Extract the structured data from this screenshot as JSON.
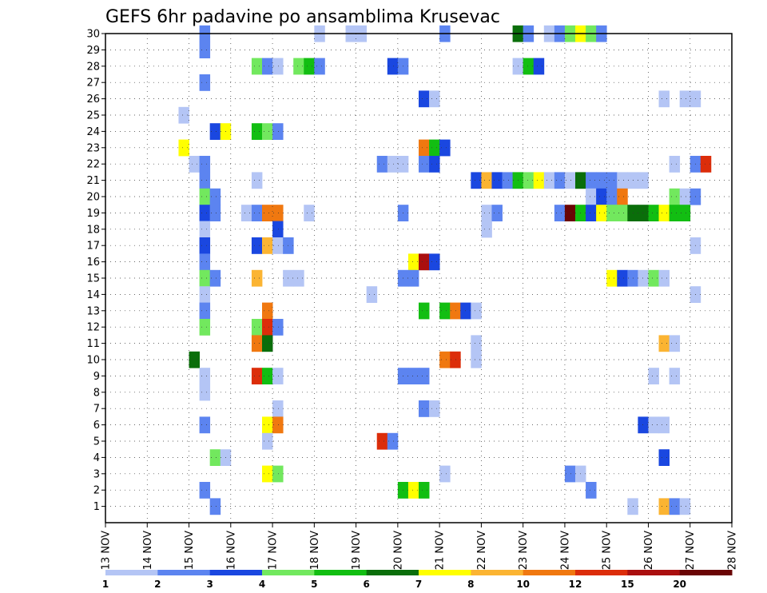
{
  "chart_data": {
    "type": "heatmap",
    "title": "GEFS 6hr padavine po ansamblima Krusevac",
    "xlabel": "",
    "ylabel": "",
    "x_ticks": [
      "13 NOV",
      "14 NOV",
      "15 NOV",
      "16 NOV",
      "17 NOV",
      "18 NOV",
      "19 NOV",
      "20 NOV",
      "21 NOV",
      "22 NOV",
      "23 NOV",
      "24 NOV",
      "25 NOV",
      "26 NOV",
      "27 NOV",
      "28 NOV"
    ],
    "y_ticks": [
      "1",
      "2",
      "3",
      "4",
      "5",
      "6",
      "7",
      "8",
      "9",
      "10",
      "11",
      "12",
      "13",
      "14",
      "15",
      "16",
      "17",
      "18",
      "19",
      "20",
      "21",
      "22",
      "23",
      "24",
      "25",
      "26",
      "27",
      "28",
      "29",
      "30"
    ],
    "xlim": [
      0,
      60
    ],
    "ylim": [
      0,
      30
    ],
    "grid": true,
    "colorbar": {
      "bounds": [
        1,
        2,
        3,
        4,
        5,
        6,
        7,
        8,
        10,
        12,
        15,
        20
      ],
      "labels": [
        "1",
        "2",
        "3",
        "4",
        "5",
        "6",
        "7",
        "8",
        "10",
        "12",
        "15",
        "20"
      ],
      "colors": [
        "#b4c5f5",
        "#5c84f0",
        "#1a47e0",
        "#72e85e",
        "#12be12",
        "#0a6e0a",
        "#ffff00",
        "#fbb432",
        "#f07810",
        "#dc2d0a",
        "#aa0f0f",
        "#6a0505"
      ]
    },
    "cells": [
      [
        9,
        30,
        2
      ],
      [
        20,
        30,
        1
      ],
      [
        23,
        30,
        1
      ],
      [
        24,
        30,
        1
      ],
      [
        32,
        30,
        2
      ],
      [
        39,
        30,
        6
      ],
      [
        40,
        30,
        2
      ],
      [
        42,
        30,
        1
      ],
      [
        43,
        30,
        2
      ],
      [
        44,
        30,
        4
      ],
      [
        45,
        30,
        7
      ],
      [
        46,
        30,
        4
      ],
      [
        47,
        30,
        2
      ],
      [
        9,
        29,
        2
      ],
      [
        14,
        28,
        4
      ],
      [
        15,
        28,
        2
      ],
      [
        16,
        28,
        1
      ],
      [
        18,
        28,
        4
      ],
      [
        19,
        28,
        5
      ],
      [
        20,
        28,
        2
      ],
      [
        27,
        28,
        3
      ],
      [
        28,
        28,
        2
      ],
      [
        39,
        28,
        1
      ],
      [
        40,
        28,
        5
      ],
      [
        41,
        28,
        3
      ],
      [
        9,
        27,
        2
      ],
      [
        30,
        26,
        3
      ],
      [
        31,
        26,
        1
      ],
      [
        53,
        26,
        1
      ],
      [
        55,
        26,
        1
      ],
      [
        56,
        26,
        1
      ],
      [
        7,
        25,
        1
      ],
      [
        10,
        24,
        3
      ],
      [
        11,
        24,
        7
      ],
      [
        14,
        24,
        5
      ],
      [
        15,
        24,
        4
      ],
      [
        16,
        24,
        2
      ],
      [
        7,
        23,
        7
      ],
      [
        30,
        23,
        9
      ],
      [
        31,
        23,
        5
      ],
      [
        32,
        23,
        3
      ],
      [
        8,
        22,
        1
      ],
      [
        9,
        22,
        2
      ],
      [
        26,
        22,
        2
      ],
      [
        27,
        22,
        1
      ],
      [
        28,
        22,
        1
      ],
      [
        30,
        22,
        2
      ],
      [
        31,
        22,
        3
      ],
      [
        54,
        22,
        1
      ],
      [
        56,
        22,
        2
      ],
      [
        57,
        22,
        10
      ],
      [
        9,
        21,
        2
      ],
      [
        14,
        21,
        1
      ],
      [
        35,
        21,
        3
      ],
      [
        36,
        21,
        8
      ],
      [
        37,
        21,
        3
      ],
      [
        38,
        21,
        2
      ],
      [
        39,
        21,
        5
      ],
      [
        40,
        21,
        4
      ],
      [
        41,
        21,
        7
      ],
      [
        42,
        21,
        1
      ],
      [
        43,
        21,
        2
      ],
      [
        44,
        21,
        1
      ],
      [
        45,
        21,
        6
      ],
      [
        46,
        21,
        2
      ],
      [
        47,
        21,
        2
      ],
      [
        48,
        21,
        2
      ],
      [
        49,
        21,
        1
      ],
      [
        50,
        21,
        1
      ],
      [
        51,
        21,
        1
      ],
      [
        9,
        20,
        4
      ],
      [
        10,
        20,
        2
      ],
      [
        46,
        20,
        1
      ],
      [
        47,
        20,
        3
      ],
      [
        48,
        20,
        2
      ],
      [
        49,
        20,
        9
      ],
      [
        54,
        20,
        4
      ],
      [
        55,
        20,
        1
      ],
      [
        56,
        20,
        2
      ],
      [
        9,
        19,
        3
      ],
      [
        10,
        19,
        2
      ],
      [
        13,
        19,
        1
      ],
      [
        14,
        19,
        2
      ],
      [
        15,
        19,
        9
      ],
      [
        16,
        19,
        9
      ],
      [
        19,
        19,
        1
      ],
      [
        28,
        19,
        2
      ],
      [
        36,
        19,
        1
      ],
      [
        37,
        19,
        2
      ],
      [
        43,
        19,
        2
      ],
      [
        44,
        19,
        12
      ],
      [
        45,
        19,
        5
      ],
      [
        46,
        19,
        3
      ],
      [
        47,
        19,
        7
      ],
      [
        48,
        19,
        4
      ],
      [
        49,
        19,
        4
      ],
      [
        50,
        19,
        6
      ],
      [
        51,
        19,
        6
      ],
      [
        52,
        19,
        5
      ],
      [
        53,
        19,
        7
      ],
      [
        54,
        19,
        5
      ],
      [
        55,
        19,
        5
      ],
      [
        9,
        18,
        1
      ],
      [
        16,
        18,
        3
      ],
      [
        36,
        18,
        1
      ],
      [
        9,
        17,
        3
      ],
      [
        14,
        17,
        3
      ],
      [
        15,
        17,
        8
      ],
      [
        16,
        17,
        1
      ],
      [
        17,
        17,
        2
      ],
      [
        56,
        17,
        1
      ],
      [
        9,
        16,
        2
      ],
      [
        29,
        16,
        7
      ],
      [
        30,
        16,
        11
      ],
      [
        31,
        16,
        3
      ],
      [
        9,
        15,
        4
      ],
      [
        10,
        15,
        2
      ],
      [
        14,
        15,
        8
      ],
      [
        17,
        15,
        1
      ],
      [
        18,
        15,
        1
      ],
      [
        28,
        15,
        2
      ],
      [
        29,
        15,
        2
      ],
      [
        48,
        15,
        7
      ],
      [
        49,
        15,
        3
      ],
      [
        50,
        15,
        2
      ],
      [
        51,
        15,
        1
      ],
      [
        52,
        15,
        4
      ],
      [
        53,
        15,
        1
      ],
      [
        9,
        14,
        1
      ],
      [
        25,
        14,
        1
      ],
      [
        56,
        14,
        1
      ],
      [
        9,
        13,
        2
      ],
      [
        15,
        13,
        9
      ],
      [
        30,
        13,
        5
      ],
      [
        32,
        13,
        5
      ],
      [
        33,
        13,
        9
      ],
      [
        34,
        13,
        3
      ],
      [
        35,
        13,
        1
      ],
      [
        9,
        12,
        4
      ],
      [
        14,
        12,
        4
      ],
      [
        15,
        12,
        10
      ],
      [
        16,
        12,
        2
      ],
      [
        14,
        11,
        9
      ],
      [
        15,
        11,
        6
      ],
      [
        35,
        11,
        1
      ],
      [
        53,
        11,
        8
      ],
      [
        54,
        11,
        1
      ],
      [
        8,
        10,
        6
      ],
      [
        32,
        10,
        9
      ],
      [
        33,
        10,
        10
      ],
      [
        35,
        10,
        1
      ],
      [
        9,
        9,
        1
      ],
      [
        14,
        9,
        10
      ],
      [
        15,
        9,
        5
      ],
      [
        16,
        9,
        1
      ],
      [
        28,
        9,
        2
      ],
      [
        29,
        9,
        2
      ],
      [
        30,
        9,
        2
      ],
      [
        52,
        9,
        1
      ],
      [
        54,
        9,
        1
      ],
      [
        9,
        8,
        1
      ],
      [
        16,
        7,
        1
      ],
      [
        30,
        7,
        2
      ],
      [
        31,
        7,
        1
      ],
      [
        9,
        6,
        2
      ],
      [
        15,
        6,
        7
      ],
      [
        16,
        6,
        9
      ],
      [
        51,
        6,
        3
      ],
      [
        52,
        6,
        1
      ],
      [
        53,
        6,
        1
      ],
      [
        15,
        5,
        1
      ],
      [
        26,
        5,
        10
      ],
      [
        27,
        5,
        2
      ],
      [
        10,
        4,
        4
      ],
      [
        11,
        4,
        1
      ],
      [
        53,
        4,
        3
      ],
      [
        15,
        3,
        7
      ],
      [
        16,
        3,
        4
      ],
      [
        32,
        3,
        1
      ],
      [
        44,
        3,
        2
      ],
      [
        45,
        3,
        1
      ],
      [
        9,
        2,
        2
      ],
      [
        28,
        2,
        5
      ],
      [
        29,
        2,
        7
      ],
      [
        30,
        2,
        5
      ],
      [
        46,
        2,
        2
      ],
      [
        10,
        1,
        2
      ],
      [
        50,
        1,
        1
      ],
      [
        53,
        1,
        8
      ],
      [
        54,
        1,
        2
      ],
      [
        55,
        1,
        1
      ]
    ]
  }
}
